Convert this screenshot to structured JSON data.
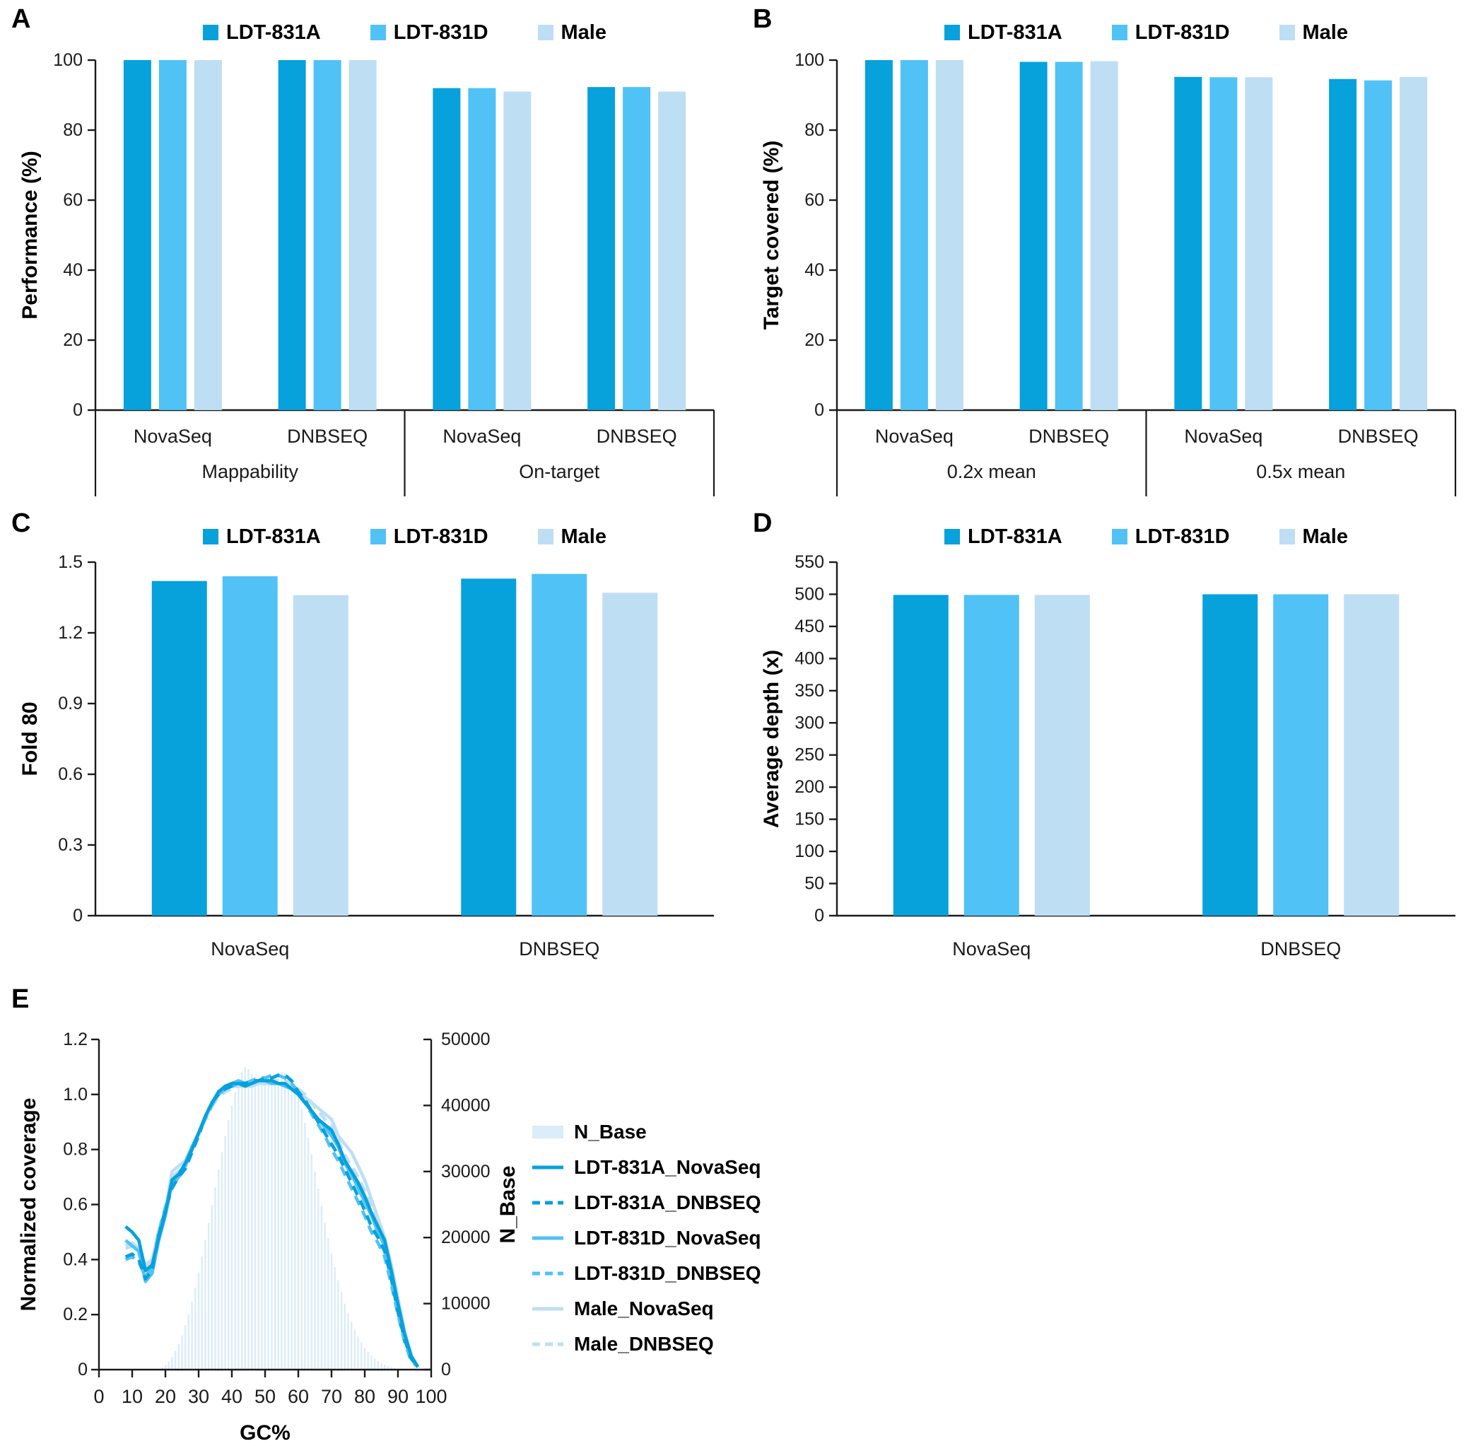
{
  "colors": {
    "series1": "#07a1dc",
    "series2": "#50c2f5",
    "series3": "#bedef4",
    "histogram": "#dcecf8",
    "axis": "#1a1a1a",
    "text": "#111111"
  },
  "chart_data": [
    {
      "panel_label": "A",
      "type": "bar",
      "ylabel": "Performance (%)",
      "ymax": 100,
      "yticks": [
        "0",
        "20",
        "40",
        "60",
        "80",
        "100"
      ],
      "legend": [
        "LDT-831A",
        "LDT-831D",
        "Male"
      ],
      "sub_labels": [
        "NovaSeq",
        "DNBSEQ",
        "NovaSeq",
        "DNBSEQ"
      ],
      "group_labels": [
        "Mappability",
        "On-target"
      ],
      "series": [
        {
          "name": "LDT-831A",
          "values": [
            100,
            100,
            92,
            92.3
          ]
        },
        {
          "name": "LDT-831D",
          "values": [
            100,
            100,
            92,
            92.3
          ]
        },
        {
          "name": "Male",
          "values": [
            100,
            100,
            91,
            91
          ]
        }
      ]
    },
    {
      "panel_label": "B",
      "type": "bar",
      "ylabel": "Target covered (%)",
      "ymax": 100,
      "yticks": [
        "0",
        "20",
        "40",
        "60",
        "80",
        "100"
      ],
      "legend": [
        "LDT-831A",
        "LDT-831D",
        "Male"
      ],
      "sub_labels": [
        "NovaSeq",
        "DNBSEQ",
        "NovaSeq",
        "DNBSEQ"
      ],
      "group_labels": [
        "0.2x mean",
        "0.5x mean"
      ],
      "series": [
        {
          "name": "LDT-831A",
          "values": [
            100,
            99.5,
            95.2,
            94.6
          ]
        },
        {
          "name": "LDT-831D",
          "values": [
            100,
            99.5,
            95.1,
            94.2
          ]
        },
        {
          "name": "Male",
          "values": [
            100,
            99.7,
            95.1,
            95.2
          ]
        }
      ]
    },
    {
      "panel_label": "C",
      "type": "bar",
      "ylabel": "Fold 80",
      "ymax": 1.5,
      "yticks": [
        "0",
        "0.3",
        "0.6",
        "0.9",
        "1.2",
        "1.5"
      ],
      "legend": [
        "LDT-831A",
        "LDT-831D",
        "Male"
      ],
      "sub_labels": [
        "NovaSeq",
        "DNBSEQ"
      ],
      "group_labels": null,
      "series": [
        {
          "name": "LDT-831A",
          "values": [
            1.42,
            1.43
          ]
        },
        {
          "name": "LDT-831D",
          "values": [
            1.44,
            1.45
          ]
        },
        {
          "name": "Male",
          "values": [
            1.36,
            1.37
          ]
        }
      ]
    },
    {
      "panel_label": "D",
      "type": "bar",
      "ylabel": "Average depth (x)",
      "ymax": 550,
      "yticks": [
        "0",
        "50",
        "100",
        "150",
        "200",
        "250",
        "300",
        "350",
        "400",
        "450",
        "500",
        "550"
      ],
      "legend": [
        "LDT-831A",
        "LDT-831D",
        "Male"
      ],
      "sub_labels": [
        "NovaSeq",
        "DNBSEQ"
      ],
      "group_labels": null,
      "series": [
        {
          "name": "LDT-831A",
          "values": [
            499,
            500
          ]
        },
        {
          "name": "LDT-831D",
          "values": [
            499,
            500
          ]
        },
        {
          "name": "Male",
          "values": [
            499,
            500
          ]
        }
      ]
    },
    {
      "panel_label": "E",
      "type": "line",
      "xlabel": "GC%",
      "ylabel_left": "Normalized coverage",
      "ylabel_right": "N_Base",
      "xmax": 100,
      "xticks": [
        "0",
        "10",
        "20",
        "30",
        "40",
        "50",
        "60",
        "70",
        "80",
        "90",
        "100"
      ],
      "ymax_left": 1.2,
      "yticks_left": [
        "0",
        "0.2",
        "0.4",
        "0.6",
        "0.8",
        "1.0",
        "1.2"
      ],
      "ymax_right": 50000,
      "yticks_right": [
        "0",
        "10000",
        "20000",
        "30000",
        "40000",
        "50000"
      ],
      "histogram": {
        "name": "N_Base",
        "color": "histogram",
        "gc_start": 19,
        "gc_step": 1,
        "values": [
          300,
          700,
          1200,
          1900,
          2800,
          3900,
          5200,
          6700,
          8400,
          10300,
          12400,
          14700,
          17100,
          19600,
          22200,
          24900,
          27600,
          30300,
          32900,
          35400,
          37800,
          40000,
          42000,
          43700,
          45000,
          45800,
          45500,
          44800,
          44300,
          44000,
          43900,
          44000,
          44200,
          44500,
          44800,
          45000,
          45100,
          45000,
          44600,
          43900,
          42800,
          41300,
          39500,
          37400,
          35100,
          32600,
          30000,
          27400,
          24800,
          22300,
          19900,
          17600,
          15500,
          13500,
          11700,
          10000,
          8500,
          7200,
          6000,
          5000,
          4100,
          3300,
          2700,
          2100,
          1700,
          1300,
          1000,
          750,
          550,
          400,
          280
        ]
      },
      "gc": [
        8,
        10,
        12,
        14,
        16,
        18,
        20,
        22,
        24,
        26,
        28,
        30,
        32,
        34,
        36,
        38,
        40,
        42,
        44,
        46,
        48,
        50,
        52,
        54,
        56,
        58,
        60,
        62,
        64,
        66,
        68,
        70,
        72,
        74,
        76,
        78,
        80,
        82,
        84,
        86,
        88,
        90,
        92,
        94,
        96
      ],
      "series": [
        {
          "name": "LDT-831A_NovaSeq",
          "color": "series1",
          "dash": false,
          "values": [
            0.52,
            0.5,
            0.47,
            0.36,
            0.38,
            0.48,
            0.57,
            0.69,
            0.71,
            0.75,
            0.8,
            0.86,
            0.92,
            0.97,
            1.01,
            1.03,
            1.04,
            1.04,
            1.03,
            1.04,
            1.05,
            1.05,
            1.05,
            1.04,
            1.04,
            1.02,
            1.0,
            0.97,
            0.94,
            0.91,
            0.89,
            0.87,
            0.82,
            0.76,
            0.72,
            0.68,
            0.63,
            0.57,
            0.52,
            0.47,
            0.36,
            0.24,
            0.13,
            0.05,
            0.01
          ]
        },
        {
          "name": "LDT-831A_DNBSEQ",
          "color": "series1",
          "dash": true,
          "values": [
            0.41,
            0.42,
            0.4,
            0.33,
            0.36,
            0.49,
            0.58,
            0.66,
            0.7,
            0.73,
            0.79,
            0.85,
            0.92,
            0.97,
            1.0,
            1.02,
            1.03,
            1.04,
            1.04,
            1.05,
            1.05,
            1.06,
            1.06,
            1.07,
            1.07,
            1.05,
            1.01,
            0.98,
            0.94,
            0.9,
            0.86,
            0.82,
            0.78,
            0.73,
            0.68,
            0.63,
            0.58,
            0.52,
            0.48,
            0.43,
            0.33,
            0.21,
            0.11,
            0.04,
            0.01
          ]
        },
        {
          "name": "LDT-831D_NovaSeq",
          "color": "series2",
          "dash": false,
          "values": [
            0.47,
            0.45,
            0.43,
            0.32,
            0.35,
            0.47,
            0.56,
            0.68,
            0.71,
            0.75,
            0.81,
            0.86,
            0.92,
            0.97,
            1.0,
            1.03,
            1.04,
            1.05,
            1.04,
            1.04,
            1.05,
            1.05,
            1.04,
            1.04,
            1.03,
            1.02,
            1.0,
            0.97,
            0.94,
            0.91,
            0.88,
            0.85,
            0.81,
            0.75,
            0.71,
            0.66,
            0.61,
            0.56,
            0.5,
            0.45,
            0.35,
            0.23,
            0.12,
            0.04,
            0.01
          ]
        },
        {
          "name": "LDT-831D_DNBSEQ",
          "color": "series2",
          "dash": true,
          "values": [
            0.4,
            0.41,
            0.39,
            0.34,
            0.37,
            0.5,
            0.59,
            0.67,
            0.7,
            0.74,
            0.8,
            0.86,
            0.91,
            0.96,
            1.0,
            1.02,
            1.03,
            1.04,
            1.04,
            1.05,
            1.06,
            1.06,
            1.07,
            1.07,
            1.06,
            1.04,
            1.01,
            0.97,
            0.93,
            0.89,
            0.85,
            0.8,
            0.76,
            0.71,
            0.66,
            0.61,
            0.56,
            0.5,
            0.46,
            0.41,
            0.31,
            0.2,
            0.1,
            0.03,
            0.01
          ]
        },
        {
          "name": "Male_NovaSeq",
          "color": "series3",
          "dash": false,
          "values": [
            0.45,
            0.46,
            0.44,
            0.38,
            0.4,
            0.5,
            0.58,
            0.72,
            0.74,
            0.76,
            0.81,
            0.86,
            0.92,
            0.96,
            1.0,
            1.02,
            1.03,
            1.03,
            1.03,
            1.03,
            1.04,
            1.04,
            1.04,
            1.04,
            1.04,
            1.03,
            1.01,
            0.99,
            0.97,
            0.95,
            0.93,
            0.91,
            0.85,
            0.82,
            0.79,
            0.74,
            0.69,
            0.62,
            0.55,
            0.48,
            0.38,
            0.26,
            0.14,
            0.05,
            0.01
          ]
        },
        {
          "name": "Male_DNBSEQ",
          "color": "series3",
          "dash": true,
          "values": [
            0.44,
            0.45,
            0.42,
            0.37,
            0.39,
            0.51,
            0.58,
            0.7,
            0.72,
            0.75,
            0.8,
            0.85,
            0.91,
            0.96,
            0.99,
            1.01,
            1.02,
            1.03,
            1.03,
            1.04,
            1.04,
            1.05,
            1.05,
            1.05,
            1.05,
            1.04,
            1.02,
            1.0,
            0.97,
            0.94,
            0.91,
            0.88,
            0.83,
            0.78,
            0.74,
            0.7,
            0.65,
            0.59,
            0.53,
            0.46,
            0.36,
            0.24,
            0.12,
            0.04,
            0.01
          ]
        }
      ]
    }
  ]
}
